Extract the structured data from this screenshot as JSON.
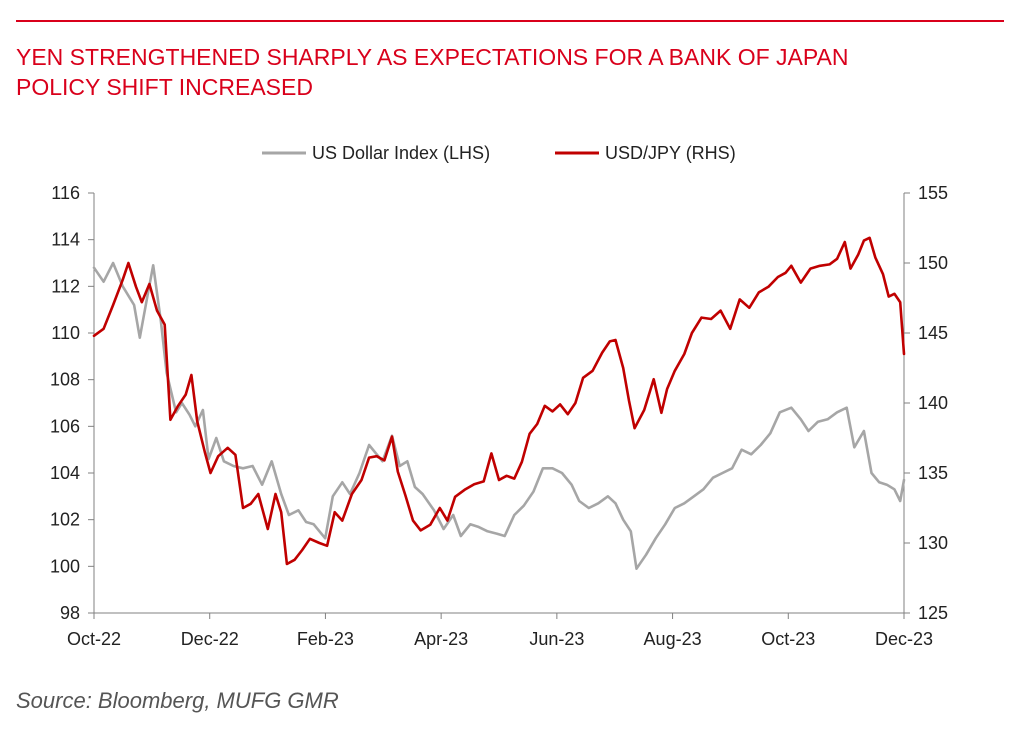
{
  "title": {
    "line1": "YEN STRENGTHENED SHARPLY AS EXPECTATIONS FOR A BANK OF JAPAN",
    "line2": "POLICY SHIFT INCREASED"
  },
  "source": "Source: Bloomberg, MUFG GMR",
  "colors": {
    "accent": "#d9001b",
    "usd_index": "#a6a6a6",
    "usdjpy": "#c00000",
    "axis": "#808080",
    "text": "#222222"
  },
  "chart_data": {
    "type": "line",
    "grid": false,
    "legend_position": "top-center",
    "x_ticks": [
      "Oct-22",
      "Dec-22",
      "Feb-23",
      "Apr-23",
      "Jun-23",
      "Aug-23",
      "Oct-23",
      "Dec-23"
    ],
    "x_range": [
      "2022-10-03",
      "2023-12-01"
    ],
    "y_left": {
      "min": 98,
      "max": 116,
      "step": 2,
      "ticks": [
        "98",
        "100",
        "102",
        "104",
        "106",
        "108",
        "110",
        "112",
        "114",
        "116"
      ]
    },
    "y_right": {
      "min": 125,
      "max": 155,
      "step": 5,
      "ticks": [
        "125",
        "130",
        "135",
        "140",
        "145",
        "150",
        "155"
      ]
    },
    "series": [
      {
        "name": "US Dollar Index (LHS)",
        "axis": "left",
        "points": [
          [
            "2022-10-03",
            112.8
          ],
          [
            "2022-10-08",
            112.2
          ],
          [
            "2022-10-13",
            113.0
          ],
          [
            "2022-10-18",
            112.0
          ],
          [
            "2022-10-24",
            111.2
          ],
          [
            "2022-10-27",
            109.8
          ],
          [
            "2022-10-31",
            111.6
          ],
          [
            "2022-11-03",
            112.9
          ],
          [
            "2022-11-07",
            110.5
          ],
          [
            "2022-11-10",
            108.3
          ],
          [
            "2022-11-15",
            106.6
          ],
          [
            "2022-11-18",
            107.0
          ],
          [
            "2022-11-22",
            106.5
          ],
          [
            "2022-11-25",
            106.0
          ],
          [
            "2022-11-29",
            106.7
          ],
          [
            "2022-12-02",
            104.6
          ],
          [
            "2022-12-06",
            105.5
          ],
          [
            "2022-12-10",
            104.5
          ],
          [
            "2022-12-15",
            104.3
          ],
          [
            "2022-12-20",
            104.2
          ],
          [
            "2022-12-25",
            104.3
          ],
          [
            "2022-12-30",
            103.5
          ],
          [
            "2023-01-04",
            104.5
          ],
          [
            "2023-01-09",
            103.1
          ],
          [
            "2023-01-13",
            102.2
          ],
          [
            "2023-01-18",
            102.4
          ],
          [
            "2023-01-22",
            101.9
          ],
          [
            "2023-01-26",
            101.8
          ],
          [
            "2023-02-01",
            101.2
          ],
          [
            "2023-02-05",
            103.0
          ],
          [
            "2023-02-10",
            103.6
          ],
          [
            "2023-02-14",
            103.1
          ],
          [
            "2023-02-19",
            104.0
          ],
          [
            "2023-02-24",
            105.2
          ],
          [
            "2023-02-28",
            104.8
          ],
          [
            "2023-03-03",
            104.5
          ],
          [
            "2023-03-08",
            105.6
          ],
          [
            "2023-03-12",
            104.3
          ],
          [
            "2023-03-16",
            104.5
          ],
          [
            "2023-03-20",
            103.4
          ],
          [
            "2023-03-24",
            103.1
          ],
          [
            "2023-03-30",
            102.4
          ],
          [
            "2023-04-04",
            101.6
          ],
          [
            "2023-04-09",
            102.2
          ],
          [
            "2023-04-13",
            101.3
          ],
          [
            "2023-04-18",
            101.8
          ],
          [
            "2023-04-22",
            101.7
          ],
          [
            "2023-04-27",
            101.5
          ],
          [
            "2023-05-02",
            101.4
          ],
          [
            "2023-05-06",
            101.3
          ],
          [
            "2023-05-11",
            102.2
          ],
          [
            "2023-05-16",
            102.6
          ],
          [
            "2023-05-21",
            103.2
          ],
          [
            "2023-05-26",
            104.2
          ],
          [
            "2023-05-31",
            104.2
          ],
          [
            "2023-06-05",
            104.0
          ],
          [
            "2023-06-10",
            103.5
          ],
          [
            "2023-06-14",
            102.8
          ],
          [
            "2023-06-19",
            102.5
          ],
          [
            "2023-06-24",
            102.7
          ],
          [
            "2023-06-29",
            103.0
          ],
          [
            "2023-07-03",
            102.7
          ],
          [
            "2023-07-07",
            102.0
          ],
          [
            "2023-07-11",
            101.5
          ],
          [
            "2023-07-14",
            99.9
          ],
          [
            "2023-07-19",
            100.5
          ],
          [
            "2023-07-24",
            101.2
          ],
          [
            "2023-07-29",
            101.8
          ],
          [
            "2023-08-03",
            102.5
          ],
          [
            "2023-08-08",
            102.7
          ],
          [
            "2023-08-13",
            103.0
          ],
          [
            "2023-08-18",
            103.3
          ],
          [
            "2023-08-23",
            103.8
          ],
          [
            "2023-08-28",
            104.0
          ],
          [
            "2023-09-02",
            104.2
          ],
          [
            "2023-09-07",
            105.0
          ],
          [
            "2023-09-12",
            104.8
          ],
          [
            "2023-09-17",
            105.2
          ],
          [
            "2023-09-22",
            105.7
          ],
          [
            "2023-09-27",
            106.6
          ],
          [
            "2023-10-03",
            106.8
          ],
          [
            "2023-10-08",
            106.3
          ],
          [
            "2023-10-12",
            105.8
          ],
          [
            "2023-10-17",
            106.2
          ],
          [
            "2023-10-22",
            106.3
          ],
          [
            "2023-10-27",
            106.6
          ],
          [
            "2023-11-01",
            106.8
          ],
          [
            "2023-11-05",
            105.1
          ],
          [
            "2023-11-10",
            105.8
          ],
          [
            "2023-11-14",
            104.0
          ],
          [
            "2023-11-18",
            103.6
          ],
          [
            "2023-11-22",
            103.5
          ],
          [
            "2023-11-26",
            103.3
          ],
          [
            "2023-11-29",
            102.8
          ],
          [
            "2023-12-01",
            103.7
          ]
        ]
      },
      {
        "name": "USD/JPY (RHS)",
        "axis": "right",
        "points": [
          [
            "2022-10-03",
            144.8
          ],
          [
            "2022-10-08",
            145.3
          ],
          [
            "2022-10-13",
            147.0
          ],
          [
            "2022-10-18",
            148.8
          ],
          [
            "2022-10-21",
            150.0
          ],
          [
            "2022-10-25",
            148.3
          ],
          [
            "2022-10-28",
            147.2
          ],
          [
            "2022-11-01",
            148.5
          ],
          [
            "2022-11-05",
            146.6
          ],
          [
            "2022-11-09",
            145.6
          ],
          [
            "2022-11-12",
            138.8
          ],
          [
            "2022-11-16",
            139.8
          ],
          [
            "2022-11-20",
            140.6
          ],
          [
            "2022-11-23",
            142.0
          ],
          [
            "2022-11-26",
            138.7
          ],
          [
            "2022-11-30",
            136.5
          ],
          [
            "2022-12-03",
            135.0
          ],
          [
            "2022-12-07",
            136.2
          ],
          [
            "2022-12-12",
            136.8
          ],
          [
            "2022-12-16",
            136.3
          ],
          [
            "2022-12-20",
            132.5
          ],
          [
            "2022-12-24",
            132.8
          ],
          [
            "2022-12-28",
            133.5
          ],
          [
            "2023-01-02",
            131.0
          ],
          [
            "2023-01-06",
            133.5
          ],
          [
            "2023-01-09",
            132.2
          ],
          [
            "2023-01-12",
            128.5
          ],
          [
            "2023-01-16",
            128.8
          ],
          [
            "2023-01-20",
            129.5
          ],
          [
            "2023-01-24",
            130.3
          ],
          [
            "2023-01-29",
            130.0
          ],
          [
            "2023-02-02",
            129.8
          ],
          [
            "2023-02-06",
            132.2
          ],
          [
            "2023-02-10",
            131.6
          ],
          [
            "2023-02-15",
            133.5
          ],
          [
            "2023-02-20",
            134.5
          ],
          [
            "2023-02-24",
            136.1
          ],
          [
            "2023-02-28",
            136.2
          ],
          [
            "2023-03-04",
            135.9
          ],
          [
            "2023-03-08",
            137.6
          ],
          [
            "2023-03-11",
            135.1
          ],
          [
            "2023-03-15",
            133.4
          ],
          [
            "2023-03-19",
            131.6
          ],
          [
            "2023-03-23",
            130.9
          ],
          [
            "2023-03-28",
            131.3
          ],
          [
            "2023-04-02",
            132.5
          ],
          [
            "2023-04-06",
            131.6
          ],
          [
            "2023-04-10",
            133.3
          ],
          [
            "2023-04-15",
            133.8
          ],
          [
            "2023-04-20",
            134.2
          ],
          [
            "2023-04-25",
            134.4
          ],
          [
            "2023-04-29",
            136.4
          ],
          [
            "2023-05-03",
            134.5
          ],
          [
            "2023-05-07",
            134.8
          ],
          [
            "2023-05-11",
            134.6
          ],
          [
            "2023-05-15",
            135.8
          ],
          [
            "2023-05-19",
            137.8
          ],
          [
            "2023-05-23",
            138.5
          ],
          [
            "2023-05-27",
            139.8
          ],
          [
            "2023-05-31",
            139.4
          ],
          [
            "2023-06-04",
            139.9
          ],
          [
            "2023-06-08",
            139.2
          ],
          [
            "2023-06-12",
            140.0
          ],
          [
            "2023-06-16",
            141.8
          ],
          [
            "2023-06-21",
            142.3
          ],
          [
            "2023-06-26",
            143.6
          ],
          [
            "2023-06-30",
            144.4
          ],
          [
            "2023-07-03",
            144.5
          ],
          [
            "2023-07-07",
            142.5
          ],
          [
            "2023-07-10",
            140.2
          ],
          [
            "2023-07-13",
            138.2
          ],
          [
            "2023-07-18",
            139.5
          ],
          [
            "2023-07-23",
            141.7
          ],
          [
            "2023-07-27",
            139.3
          ],
          [
            "2023-07-30",
            141.0
          ],
          [
            "2023-08-03",
            142.3
          ],
          [
            "2023-08-08",
            143.5
          ],
          [
            "2023-08-12",
            145.0
          ],
          [
            "2023-08-17",
            146.1
          ],
          [
            "2023-08-22",
            146.0
          ],
          [
            "2023-08-27",
            146.6
          ],
          [
            "2023-09-01",
            145.3
          ],
          [
            "2023-09-06",
            147.4
          ],
          [
            "2023-09-11",
            146.8
          ],
          [
            "2023-09-16",
            147.9
          ],
          [
            "2023-09-21",
            148.3
          ],
          [
            "2023-09-26",
            149.0
          ],
          [
            "2023-09-30",
            149.3
          ],
          [
            "2023-10-03",
            149.8
          ],
          [
            "2023-10-08",
            148.6
          ],
          [
            "2023-10-13",
            149.6
          ],
          [
            "2023-10-18",
            149.8
          ],
          [
            "2023-10-23",
            149.9
          ],
          [
            "2023-10-27",
            150.3
          ],
          [
            "2023-10-31",
            151.5
          ],
          [
            "2023-11-03",
            149.6
          ],
          [
            "2023-11-07",
            150.6
          ],
          [
            "2023-11-10",
            151.6
          ],
          [
            "2023-11-13",
            151.8
          ],
          [
            "2023-11-16",
            150.4
          ],
          [
            "2023-11-20",
            149.2
          ],
          [
            "2023-11-23",
            147.6
          ],
          [
            "2023-11-26",
            147.8
          ],
          [
            "2023-11-29",
            147.2
          ],
          [
            "2023-12-01",
            143.5
          ]
        ]
      }
    ]
  }
}
